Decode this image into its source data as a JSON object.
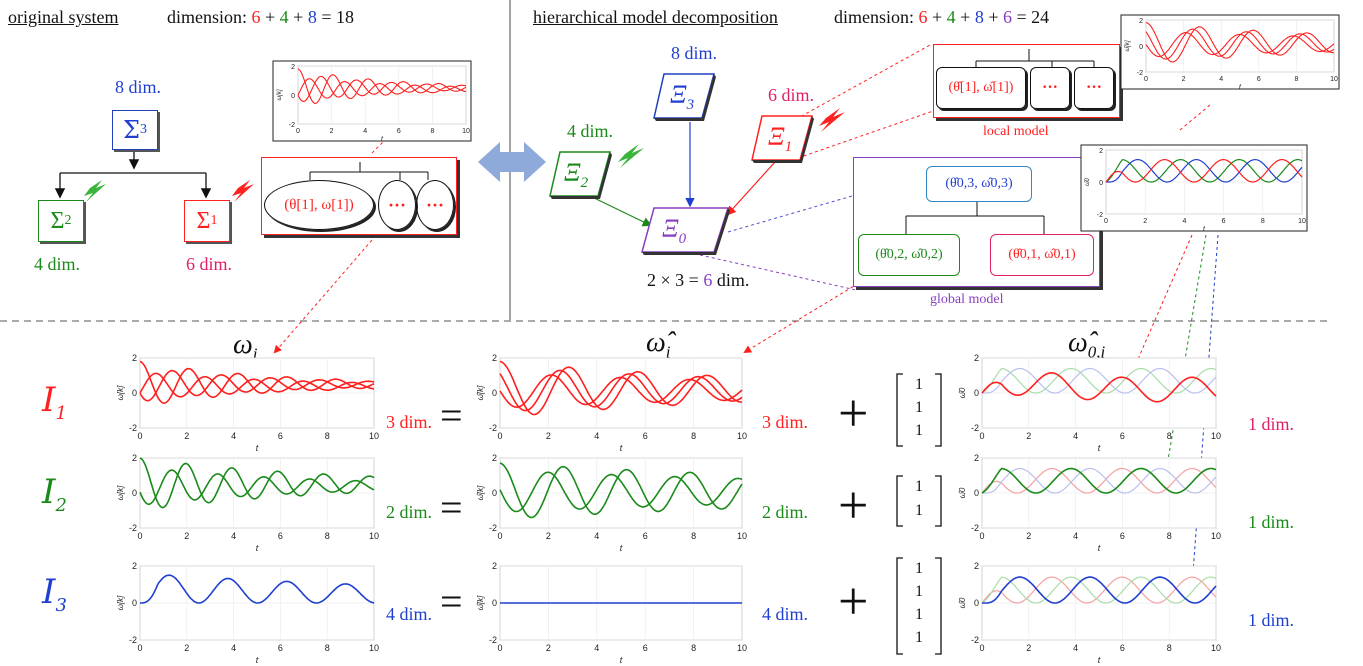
{
  "header": {
    "left_title": "original system",
    "left_dimension_label": "dimension:",
    "left_dimension_parts": [
      "6",
      "+",
      "4",
      "+",
      "8",
      "=",
      "18"
    ],
    "right_title": "hierarchical model decomposition",
    "right_dimension_label": "dimension:",
    "right_dimension_parts": [
      "6",
      "+",
      "4",
      "+",
      "8",
      "+",
      "6",
      "=",
      "24"
    ]
  },
  "original": {
    "sigma3": "Σ",
    "sigma3_sub": "3",
    "sigma3_dim": "8 dim.",
    "sigma2": "Σ",
    "sigma2_sub": "2",
    "sigma2_dim": "4 dim.",
    "sigma1": "Σ",
    "sigma1_sub": "1",
    "sigma1_dim": "6 dim.",
    "tree_root": "(θ[1], ω[1])",
    "tree_dots": "···"
  },
  "decomposition": {
    "xi3": "Ξ",
    "xi3_sub": "3",
    "xi3_dim": "8 dim.",
    "xi2": "Ξ",
    "xi2_sub": "2",
    "xi2_dim": "4 dim.",
    "xi1": "Ξ",
    "xi1_sub": "1",
    "xi1_dim": "6 dim.",
    "xi0": "Ξ",
    "xi0_sub": "0",
    "xi0_dim_prefix": "2 × 3 =",
    "xi0_dim_value": "6",
    "xi0_dim_suffix": "dim.",
    "local_root": "(θ̂[1], ω̂[1])",
    "local_dots": "···",
    "local_label": "local model",
    "global_top": "(θ̂0,3, ω̂0,3)",
    "global_left": "(θ̂0,2, ω̂0,2)",
    "global_right": "(θ̂0,1, ω̂0,1)",
    "global_label": "global model"
  },
  "columns": {
    "col1": "ω",
    "col1_sub": "i",
    "col2": "ω̂",
    "col2_sub": "i",
    "col3": "ω̂",
    "col3_sub": "0,i"
  },
  "rows": [
    {
      "label": "I",
      "sub": "1",
      "dim_left": "3 dim.",
      "dim_mid": "3 dim.",
      "dim_right": "1 dim.",
      "vector": [
        "1",
        "1",
        "1"
      ],
      "equals": "=",
      "plus": "+"
    },
    {
      "label": "I",
      "sub": "2",
      "dim_left": "2 dim.",
      "dim_mid": "2 dim.",
      "dim_right": "1 dim.",
      "vector": [
        "1",
        "1"
      ],
      "equals": "=",
      "plus": "+"
    },
    {
      "label": "I",
      "sub": "3",
      "dim_left": "4 dim.",
      "dim_mid": "4 dim.",
      "dim_right": "1 dim.",
      "vector": [
        "1",
        "1",
        "1",
        "1"
      ],
      "equals": "=",
      "plus": "+"
    }
  ],
  "plot_axes": {
    "x_ticks": [
      "0",
      "2",
      "4",
      "6",
      "8",
      "10"
    ],
    "y_ticks": [
      "2",
      "0",
      "-2"
    ],
    "xlabel": "t",
    "ylabel_omega": "ω[k]",
    "ylabel_omegahat": "ω̂[k]",
    "ylabel_omega0": "ω̂0"
  },
  "colors": {
    "red": "#ff1f1f",
    "green": "#1a8a1a",
    "blue": "#1f3fd0",
    "purple": "#8a3fbf",
    "pink": "#e0206a",
    "arrow": "#8eaadb"
  }
}
